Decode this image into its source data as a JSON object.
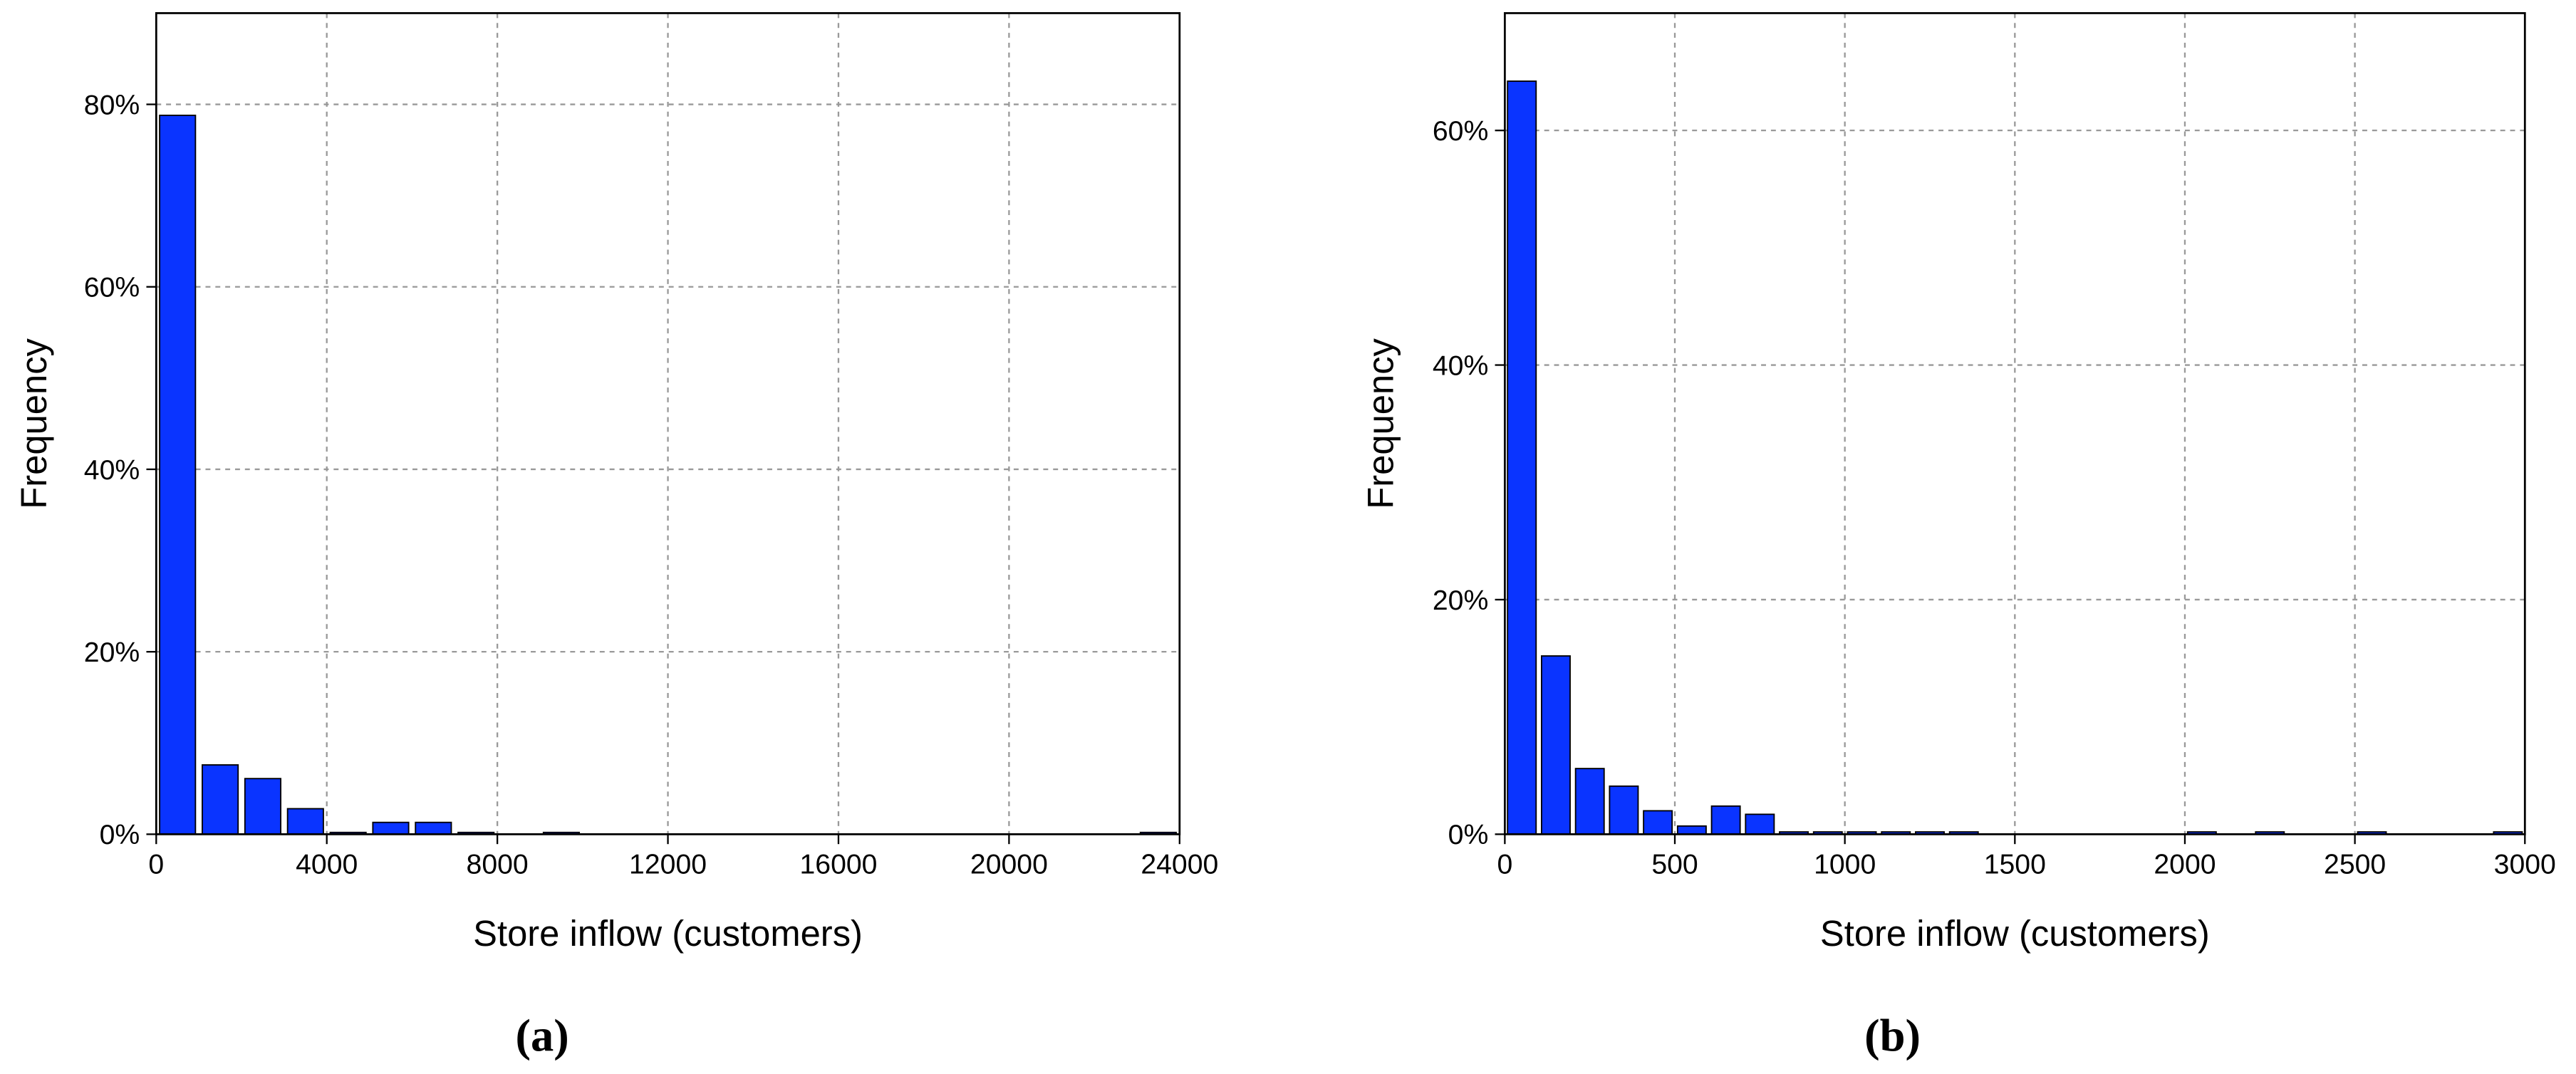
{
  "chart_data": [
    {
      "type": "histogram",
      "caption": "(a)",
      "x_label": "Store inflow (customers)",
      "y_label": "Frequency",
      "bins": [
        0,
        1000,
        2000,
        3000,
        4000,
        5000,
        6000,
        7000,
        8000,
        9000,
        10000,
        11000,
        12000,
        13000,
        14000,
        15000,
        16000,
        17000,
        18000,
        19000,
        20000,
        21000,
        22000,
        23000,
        24000
      ],
      "counts": [
        78.8,
        7.6,
        6.1,
        2.8,
        0.2,
        1.3,
        1.3,
        0.2,
        0,
        0.2,
        0,
        0,
        0,
        0,
        0,
        0,
        0,
        0,
        0,
        0,
        0,
        0,
        0,
        0.2
      ],
      "color": "#0a34ff",
      "xlim": [
        0,
        24000
      ],
      "xticks": [
        0,
        4000,
        8000,
        12000,
        16000,
        20000,
        24000
      ],
      "ylim": [
        0,
        90
      ],
      "yticks": [
        {
          "value": 0,
          "label": "0%"
        },
        {
          "value": 20,
          "label": "20%"
        },
        {
          "value": 40,
          "label": "40%"
        },
        {
          "value": 60,
          "label": "60%"
        },
        {
          "value": 80,
          "label": "80%"
        }
      ],
      "grid": true
    },
    {
      "type": "histogram",
      "caption": "(b)",
      "x_label": "Store inflow (customers)",
      "y_label": "Frequency",
      "bins": [
        0,
        100,
        200,
        300,
        400,
        500,
        600,
        700,
        800,
        900,
        1000,
        1100,
        1200,
        1300,
        1400,
        1500,
        1600,
        1700,
        1800,
        1900,
        2000,
        2100,
        2200,
        2300,
        2400,
        2500,
        2600,
        2700,
        2800,
        2900,
        3000
      ],
      "counts": [
        64.2,
        15.2,
        5.6,
        4.1,
        2.0,
        0.7,
        2.4,
        1.7,
        0.2,
        0.2,
        0.2,
        0.2,
        0.2,
        0.2,
        0,
        0,
        0,
        0,
        0,
        0,
        0.2,
        0,
        0.2,
        0,
        0,
        0.2,
        0,
        0,
        0,
        0.2
      ],
      "color": "#0a34ff",
      "xlim": [
        0,
        3000
      ],
      "xticks": [
        0,
        500,
        1000,
        1500,
        2000,
        2500,
        3000
      ],
      "ylim": [
        0,
        70
      ],
      "yticks": [
        {
          "value": 0,
          "label": "0%"
        },
        {
          "value": 20,
          "label": "20%"
        },
        {
          "value": 40,
          "label": "40%"
        },
        {
          "value": 60,
          "label": "60%"
        }
      ],
      "grid": true
    }
  ]
}
